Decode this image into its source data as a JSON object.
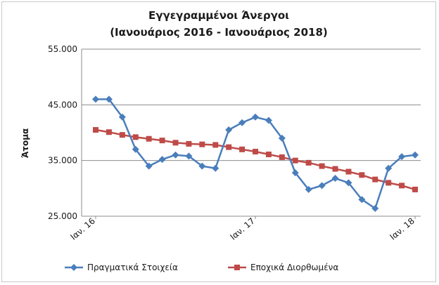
{
  "chart_data": {
    "type": "line",
    "title": "Εγγεγραμμένοι Άνεργοι",
    "subtitle": "(Ιανουάριος 2016 - Ιανουάριος 2018)",
    "ylabel": "Άτομα",
    "xlabel": "",
    "ylim": [
      25000,
      55000
    ],
    "yticks": [
      "25.000",
      "35.000",
      "45.000",
      "55.000"
    ],
    "xtick_labels": [
      "Ιαν. 16",
      "Ιαν. 17",
      "Ιαν. 18"
    ],
    "grid": "horizontal",
    "legend_position": "bottom",
    "x": [
      "2016-01",
      "2016-02",
      "2016-03",
      "2016-04",
      "2016-05",
      "2016-06",
      "2016-07",
      "2016-08",
      "2016-09",
      "2016-10",
      "2016-11",
      "2016-12",
      "2017-01",
      "2017-02",
      "2017-03",
      "2017-04",
      "2017-05",
      "2017-06",
      "2017-07",
      "2017-08",
      "2017-09",
      "2017-10",
      "2017-11",
      "2017-12",
      "2018-01"
    ],
    "series": [
      {
        "name": "Πραγματικά Στοιχεία",
        "color": "#4a7ebb",
        "marker": "diamond",
        "values": [
          46000,
          46000,
          42800,
          37000,
          34000,
          35200,
          36000,
          35800,
          34000,
          33600,
          40500,
          41800,
          42800,
          42200,
          39000,
          32800,
          29800,
          30500,
          31800,
          31000,
          28000,
          26400,
          33600,
          35700,
          36000
        ]
      },
      {
        "name": "Εποχικά Διορθωμένα",
        "color": "#be4b48",
        "marker": "square",
        "values": [
          40500,
          40100,
          39600,
          39200,
          38900,
          38600,
          38200,
          38000,
          37900,
          37800,
          37400,
          37000,
          36600,
          36100,
          35600,
          35000,
          34600,
          34000,
          33500,
          33000,
          32400,
          31600,
          31000,
          30500,
          29800
        ]
      }
    ]
  }
}
